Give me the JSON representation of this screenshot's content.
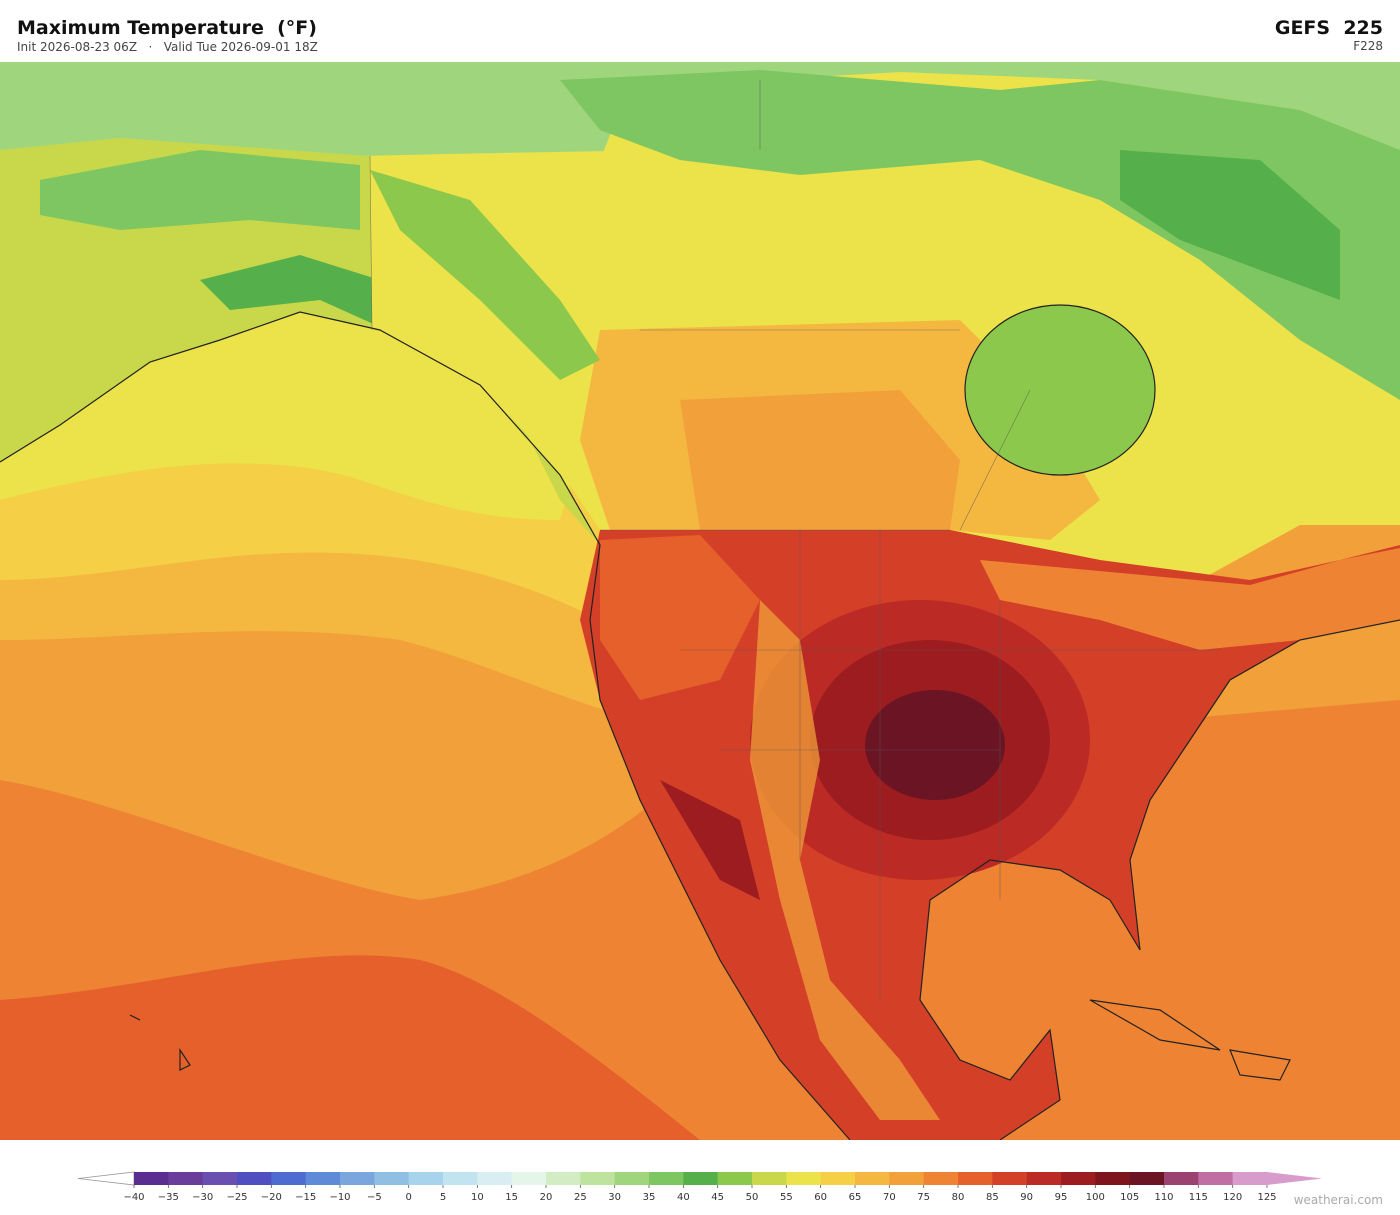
{
  "header": {
    "title": "Maximum Temperature  (°F)",
    "subtitle": "Init 2026-08-23 06Z   ·   Valid Tue 2026-09-01 18Z",
    "model": "GEFS  225",
    "forecast_hour": "F228"
  },
  "colorbar": {
    "range": [
      -40,
      125
    ],
    "ticks": [
      {
        "value": -40,
        "label": "−40"
      },
      {
        "value": -35,
        "label": "−35"
      },
      {
        "value": -30,
        "label": "−30"
      },
      {
        "value": -25,
        "label": "−25"
      },
      {
        "value": -20,
        "label": "−20"
      },
      {
        "value": -15,
        "label": "−15"
      },
      {
        "value": -10,
        "label": "−10"
      },
      {
        "value": -5,
        "label": "−5"
      },
      0,
      5,
      10,
      15,
      20,
      25,
      30,
      35,
      40,
      45,
      50,
      55,
      60,
      65,
      70,
      75,
      80,
      85,
      90,
      95,
      100,
      105,
      110,
      115,
      120,
      125
    ],
    "colors": [
      "#5b2d91",
      "#6a3d9a",
      "#6a4fb0",
      "#4f4fc2",
      "#4d6bd0",
      "#5f8ad8",
      "#7aa6dd",
      "#8fbfe3",
      "#a8d3ec",
      "#c2e3f0",
      "#d9eef2",
      "#e6f5ea",
      "#d2ecc4",
      "#bde39f",
      "#9fd67d",
      "#7dc661",
      "#55b04c",
      "#8cc84b",
      "#c8d84a",
      "#ece24a",
      "#f5cf45",
      "#f4b840",
      "#f2a03a",
      "#ee8433",
      "#e5602b",
      "#d43f28",
      "#bb2a24",
      "#9c1c20",
      "#7e151c",
      "#6a1424",
      "#9a4370",
      "#c06fa4",
      "#d79ccb"
    ]
  },
  "watermark": "weatherai.com"
}
